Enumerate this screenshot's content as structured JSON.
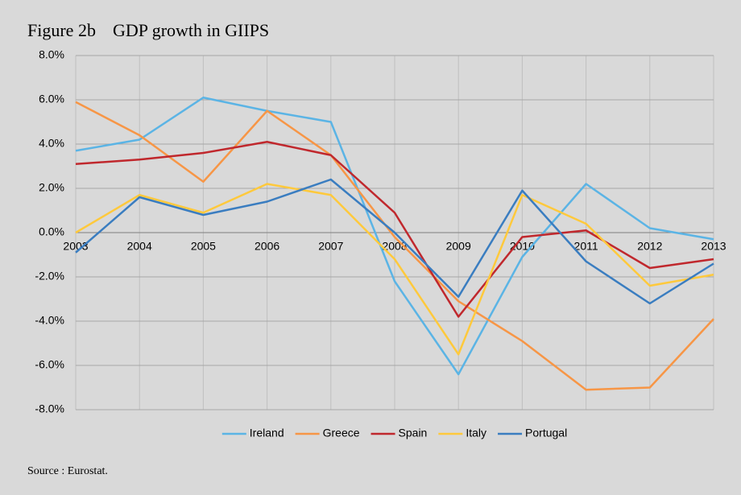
{
  "chart_data": {
    "type": "line",
    "figure_label": "Figure 2b",
    "title": "GDP growth in GIIPS",
    "source": "Source : Eurostat.",
    "categories": [
      "2003",
      "2004",
      "2005",
      "2006",
      "2007",
      "2008",
      "2009",
      "2010",
      "2011",
      "2012",
      "2013"
    ],
    "series": [
      {
        "name": "Ireland",
        "color": "#5bb4e5",
        "values": [
          3.7,
          4.2,
          6.1,
          5.5,
          5.0,
          -2.2,
          -6.4,
          -1.1,
          2.2,
          0.2,
          -0.3
        ]
      },
      {
        "name": "Greece",
        "color": "#f79646",
        "values": [
          5.9,
          4.4,
          2.3,
          5.5,
          3.5,
          -0.2,
          -3.1,
          -4.9,
          -7.1,
          -7.0,
          -3.9
        ]
      },
      {
        "name": "Spain",
        "color": "#c0282d",
        "values": [
          3.1,
          3.3,
          3.6,
          4.1,
          3.5,
          0.9,
          -3.8,
          -0.2,
          0.1,
          -1.6,
          -1.2
        ]
      },
      {
        "name": "Italy",
        "color": "#ffc93c",
        "values": [
          0.0,
          1.7,
          0.9,
          2.2,
          1.7,
          -1.2,
          -5.5,
          1.7,
          0.4,
          -2.4,
          -1.9
        ]
      },
      {
        "name": "Portugal",
        "color": "#3a7dc0",
        "values": [
          -0.9,
          1.6,
          0.8,
          1.4,
          2.4,
          0.0,
          -2.9,
          1.9,
          -1.3,
          -3.2,
          -1.4
        ]
      }
    ],
    "ylim": [
      -8,
      8
    ],
    "yticks": [
      {
        "value": -8,
        "label": "-8.0%"
      },
      {
        "value": -6,
        "label": "-6.0%"
      },
      {
        "value": -4,
        "label": "-4.0%"
      },
      {
        "value": -2,
        "label": "-2.0%"
      },
      {
        "value": 0,
        "label": "0.0%"
      },
      {
        "value": 2,
        "label": "2.0%"
      },
      {
        "value": 4,
        "label": "4.0%"
      },
      {
        "value": 6,
        "label": "6.0%"
      },
      {
        "value": 8,
        "label": "8.0%"
      }
    ],
    "grid": true,
    "legend": "bottom"
  }
}
